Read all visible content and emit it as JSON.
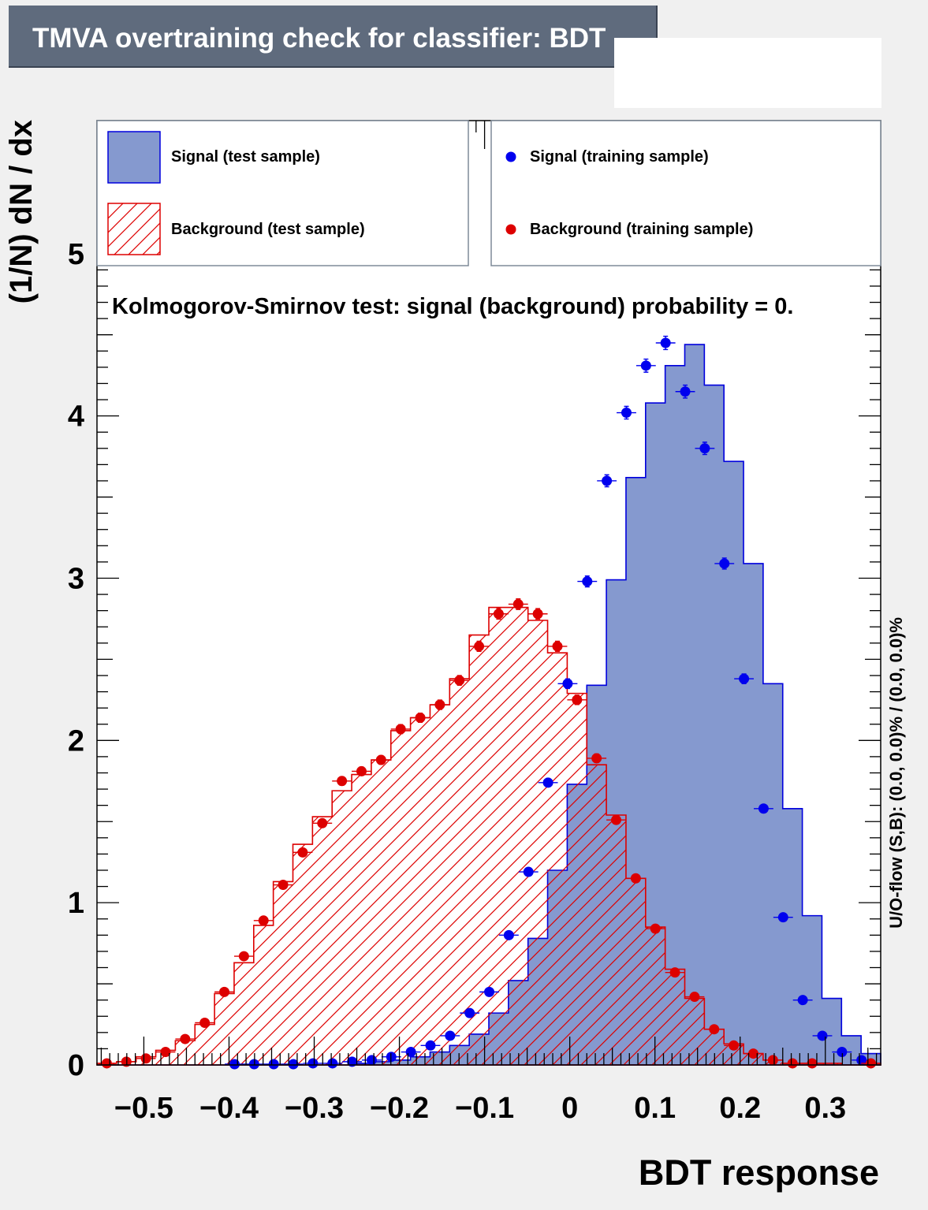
{
  "chart_data": {
    "type": "histogram",
    "title": "TMVA overtraining check for classifier: BDT",
    "xlabel": "BDT response",
    "ylabel": "(1/N) dN / dx",
    "xlim": [
      -0.555,
      0.365
    ],
    "ylim": [
      0,
      5.82
    ],
    "bin_edges_start": -0.555,
    "bin_width": 0.023,
    "n_bins": 40,
    "x_ticks": [
      -0.5,
      -0.4,
      -0.3,
      -0.2,
      -0.1,
      0,
      0.1,
      0.2,
      0.3
    ],
    "x_tick_labels": [
      "−0.5",
      "−0.4",
      "−0.3",
      "−0.2",
      "−0.1",
      "0",
      "0.1",
      "0.2",
      "0.3"
    ],
    "y_ticks": [
      0,
      1,
      2,
      3,
      4,
      5
    ],
    "y_tick_labels": [
      "0",
      "1",
      "2",
      "3",
      "4",
      "5"
    ],
    "legend": {
      "signal_test": "Signal (test sample)",
      "background_test": "Background (test sample)",
      "signal_train": "Signal (training sample)",
      "background_train": "Background (training sample)"
    },
    "ks_text": "Kolmogorov-Smirnov test: signal (background) probability = 0.",
    "overflow_text": "U/O-flow (S,B): (0.0, 0.0)% / (0.0, 0.0)%",
    "colors": {
      "signal_fill": "#8599cf",
      "signal_line": "#0000dd",
      "background_line": "#dd0000",
      "signal_marker": "#0000ee",
      "background_marker": "#dd0000"
    },
    "series": [
      {
        "name": "Signal (test sample)",
        "style": "filled",
        "values": [
          0,
          0,
          0,
          0,
          0,
          0,
          0,
          0,
          0,
          0,
          0,
          0,
          0,
          0.01,
          0.02,
          0.03,
          0.05,
          0.08,
          0.12,
          0.19,
          0.32,
          0.52,
          0.78,
          1.2,
          1.73,
          2.34,
          2.99,
          3.62,
          4.08,
          4.31,
          4.44,
          4.19,
          3.72,
          3.09,
          2.35,
          1.58,
          0.92,
          0.41,
          0.18,
          0.07
        ]
      },
      {
        "name": "Background (test sample)",
        "style": "hatched",
        "values": [
          0.01,
          0.02,
          0.05,
          0.09,
          0.15,
          0.25,
          0.44,
          0.63,
          0.86,
          1.13,
          1.36,
          1.53,
          1.69,
          1.79,
          1.88,
          2.06,
          2.14,
          2.22,
          2.38,
          2.65,
          2.82,
          2.82,
          2.74,
          2.54,
          2.29,
          1.85,
          1.54,
          1.15,
          0.85,
          0.59,
          0.41,
          0.22,
          0.13,
          0.07,
          0.03,
          0.01,
          0.01,
          0.01,
          0,
          0.01
        ]
      },
      {
        "name": "Signal (training sample)",
        "style": "markers",
        "x": [
          -0.3935,
          -0.3705,
          -0.3475,
          -0.3245,
          -0.3015,
          -0.2785,
          -0.2555,
          -0.2325,
          -0.2095,
          -0.1865,
          -0.1635,
          -0.1405,
          -0.1175,
          -0.0945,
          -0.0715,
          -0.0485,
          -0.0255,
          -0.0025,
          0.0205,
          0.0435,
          0.0665,
          0.0895,
          0.1125,
          0.1355,
          0.1585,
          0.1815,
          0.2045,
          0.2275,
          0.2505,
          0.2735,
          0.2965,
          0.3195,
          0.3425
        ],
        "y": [
          0.005,
          0.005,
          0.005,
          0.005,
          0.01,
          0.01,
          0.02,
          0.03,
          0.05,
          0.08,
          0.12,
          0.18,
          0.32,
          0.45,
          0.8,
          1.19,
          1.74,
          2.35,
          2.98,
          3.6,
          4.02,
          4.31,
          4.45,
          4.15,
          3.8,
          3.09,
          2.38,
          1.58,
          0.91,
          0.4,
          0.18,
          0.08,
          0.03
        ]
      },
      {
        "name": "Background (training sample)",
        "style": "markers",
        "x": [
          -0.5435,
          -0.5205,
          -0.4975,
          -0.4745,
          -0.4515,
          -0.4285,
          -0.4055,
          -0.3825,
          -0.3595,
          -0.3365,
          -0.3135,
          -0.2905,
          -0.2675,
          -0.2445,
          -0.2215,
          -0.1985,
          -0.1755,
          -0.1525,
          -0.1295,
          -0.1065,
          -0.0835,
          -0.0605,
          -0.0375,
          -0.0145,
          0.0085,
          0.0315,
          0.0545,
          0.0775,
          0.1005,
          0.1235,
          0.1465,
          0.1695,
          0.1925,
          0.2155,
          0.2385,
          0.2615,
          0.2845,
          0.3535
        ],
        "y": [
          0.01,
          0.02,
          0.04,
          0.08,
          0.16,
          0.26,
          0.45,
          0.67,
          0.89,
          1.11,
          1.31,
          1.49,
          1.75,
          1.81,
          1.88,
          2.07,
          2.14,
          2.22,
          2.37,
          2.58,
          2.78,
          2.84,
          2.78,
          2.58,
          2.25,
          1.89,
          1.51,
          1.15,
          0.84,
          0.57,
          0.42,
          0.22,
          0.12,
          0.07,
          0.03,
          0.01,
          0.01,
          0.01
        ]
      }
    ]
  }
}
